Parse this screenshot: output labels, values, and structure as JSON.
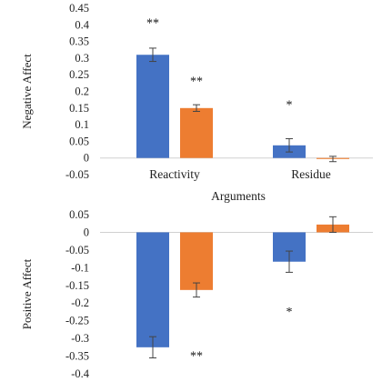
{
  "chart_data": [
    {
      "type": "bar",
      "ylabel": "Negative Affect",
      "xlabel": "Arguments",
      "categories": [
        "Reactivity",
        "Residue"
      ],
      "ylim": [
        -0.05,
        0.45
      ],
      "yticks": [
        "0.45",
        "0.4",
        "0.35",
        "0.3",
        "0.25",
        "0.2",
        "0.15",
        "0.1",
        "0.05",
        "0",
        "-0.05"
      ],
      "series": [
        {
          "color": "#4472C4",
          "values": [
            0.31,
            0.038
          ],
          "errors": [
            0.02,
            0.02
          ]
        },
        {
          "color": "#ED7D31",
          "values": [
            0.15,
            -0.003
          ],
          "errors": [
            0.01,
            0.008
          ]
        }
      ],
      "significance": [
        {
          "category": 0,
          "series": 0,
          "label": "**",
          "value": 0.41
        },
        {
          "category": 0,
          "series": 1,
          "label": "**",
          "value": 0.235
        },
        {
          "category": 1,
          "series": 0,
          "label": "*",
          "value": 0.165
        }
      ]
    },
    {
      "type": "bar",
      "ylabel": "Positive Affect",
      "categories": [
        "Reactivity",
        "Residue"
      ],
      "ylim": [
        -0.4,
        0.05
      ],
      "yticks": [
        "0.05",
        "0",
        "-0.05",
        "-0.1",
        "-0.15",
        "-0.2",
        "-0.25",
        "-0.3",
        "-0.35",
        "-0.4"
      ],
      "series": [
        {
          "color": "#4472C4",
          "values": [
            -0.325,
            -0.083
          ],
          "errors": [
            0.03,
            0.03
          ]
        },
        {
          "color": "#ED7D31",
          "values": [
            -0.163,
            0.022
          ],
          "errors": [
            0.02,
            0.022
          ]
        }
      ],
      "significance": [
        {
          "category": 0,
          "series": 1,
          "label": "**",
          "value": -0.345
        },
        {
          "category": 1,
          "series": 0,
          "label": "*",
          "value": -0.22
        }
      ]
    }
  ]
}
